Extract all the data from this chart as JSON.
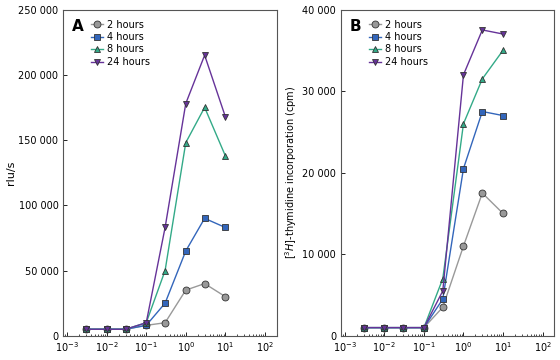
{
  "panel_A": {
    "title": "A",
    "ylabel": "rlu/s",
    "ylim": [
      0,
      250000
    ],
    "yticks": [
      0,
      50000,
      100000,
      150000,
      200000,
      250000
    ],
    "ytick_labels": [
      "0",
      "50 000",
      "100 000",
      "150 000",
      "200 000",
      "250 000"
    ],
    "series": {
      "2 hours": {
        "color": "#999999",
        "marker": "o",
        "x": [
          0.003,
          0.01,
          0.03,
          0.1,
          0.3,
          1.0,
          3.0,
          10.0
        ],
        "y": [
          5000,
          5000,
          5000,
          8000,
          10000,
          35000,
          40000,
          30000
        ]
      },
      "4 hours": {
        "color": "#3366bb",
        "marker": "s",
        "x": [
          0.003,
          0.01,
          0.03,
          0.1,
          0.3,
          1.0,
          3.0,
          10.0
        ],
        "y": [
          5000,
          5000,
          5000,
          8000,
          25000,
          65000,
          90000,
          83000
        ]
      },
      "8 hours": {
        "color": "#33aa88",
        "marker": "^",
        "x": [
          0.003,
          0.01,
          0.03,
          0.1,
          0.3,
          1.0,
          3.0,
          10.0
        ],
        "y": [
          5000,
          5000,
          5000,
          10000,
          50000,
          148000,
          175000,
          138000
        ]
      },
      "24 hours": {
        "color": "#663399",
        "marker": "v",
        "x": [
          0.003,
          0.01,
          0.03,
          0.1,
          0.3,
          1.0,
          3.0,
          10.0
        ],
        "y": [
          5000,
          5000,
          5000,
          10000,
          83000,
          178000,
          215000,
          168000
        ]
      }
    }
  },
  "panel_B": {
    "title": "B",
    "ylabel": "[3H]-thymidine incorporation (cpm)",
    "ylim": [
      0,
      40000
    ],
    "yticks": [
      0,
      10000,
      20000,
      30000,
      40000
    ],
    "ytick_labels": [
      "0",
      "10 000",
      "20 000",
      "30 000",
      "40 000"
    ],
    "series": {
      "2 hours": {
        "color": "#999999",
        "marker": "o",
        "x": [
          0.003,
          0.01,
          0.03,
          0.1,
          0.3,
          1.0,
          3.0,
          10.0
        ],
        "y": [
          1000,
          1000,
          1000,
          1000,
          3500,
          11000,
          17500,
          15000
        ]
      },
      "4 hours": {
        "color": "#3366bb",
        "marker": "s",
        "x": [
          0.003,
          0.01,
          0.03,
          0.1,
          0.3,
          1.0,
          3.0,
          10.0
        ],
        "y": [
          1000,
          1000,
          1000,
          1000,
          4500,
          20500,
          27500,
          27000
        ]
      },
      "8 hours": {
        "color": "#33aa88",
        "marker": "^",
        "x": [
          0.003,
          0.01,
          0.03,
          0.1,
          0.3,
          1.0,
          3.0,
          10.0
        ],
        "y": [
          1000,
          1000,
          1000,
          1000,
          7000,
          26000,
          31500,
          35000
        ]
      },
      "24 hours": {
        "color": "#663399",
        "marker": "v",
        "x": [
          0.003,
          0.01,
          0.03,
          0.1,
          0.3,
          1.0,
          3.0,
          10.0
        ],
        "y": [
          1000,
          1000,
          1000,
          1000,
          5500,
          32000,
          37500,
          37000
        ]
      }
    }
  },
  "xlim": [
    0.0008,
    200
  ],
  "xticks": [
    0.001,
    0.01,
    0.1,
    1.0,
    10.0,
    100.0
  ],
  "xtick_labels": [
    "10-3",
    "10-2",
    "10-1",
    "100",
    "101",
    "102"
  ],
  "legend_order": [
    "2 hours",
    "4 hours",
    "8 hours",
    "24 hours"
  ],
  "background_color": "#ffffff",
  "line_color": "#444444",
  "markersize": 5,
  "linewidth": 1.0
}
